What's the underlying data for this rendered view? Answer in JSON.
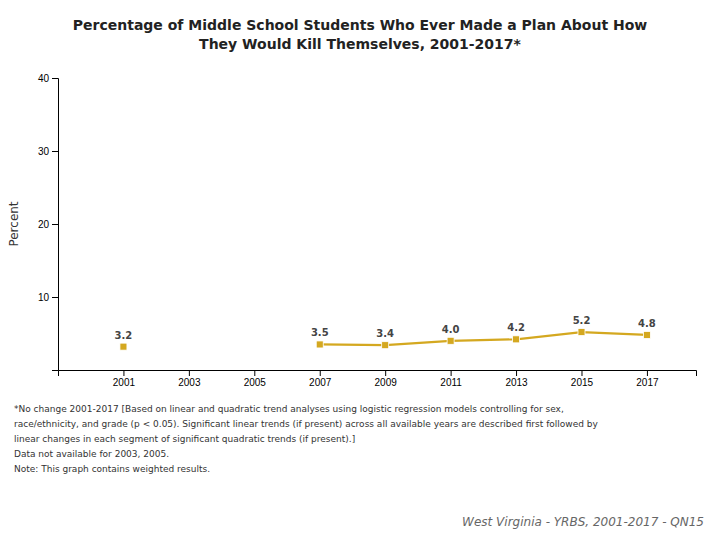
{
  "chart_data": {
    "type": "line",
    "title": [
      "Percentage of Middle School Students Who Ever Made a Plan About How",
      "They Would Kill Themselves, 2001-2017*"
    ],
    "y_label": "Percent",
    "x": [
      2001,
      2003,
      2005,
      2007,
      2009,
      2011,
      2013,
      2015,
      2017
    ],
    "values": [
      3.2,
      null,
      null,
      3.5,
      3.4,
      4.0,
      4.2,
      5.2,
      4.8
    ],
    "value_labels": [
      "3.2",
      null,
      null,
      "3.5",
      "3.4",
      "4.0",
      "4.2",
      "5.2",
      "4.8"
    ],
    "color": "#D4A820",
    "marker": "square",
    "line_style": "solid",
    "data_labels": true,
    "grid": false,
    "xlim": [
      1999.0,
      2018.5
    ],
    "xticks": [
      2001,
      2003,
      2005,
      2007,
      2009,
      2011,
      2013,
      2015,
      2017
    ],
    "ylim": [
      0,
      40
    ],
    "yticks": [
      {
        "value": 0,
        "label": null
      },
      10,
      20,
      30,
      40
    ],
    "annotations": [
      "*No change 2001-2017 [Based on linear and quadratic trend analyses using logistic regression models controlling for sex,",
      "race/ethnicity, and grade (p < 0.05). Significant linear trends (if present) across all available years are described first followed by",
      "linear changes in each segment of significant quadratic trends (if present).]",
      "Data not available for 2003, 2005.",
      "Note: This graph contains weighted results.",
      "West Virginia - YRBS, 2001-2017 - QN15"
    ]
  }
}
